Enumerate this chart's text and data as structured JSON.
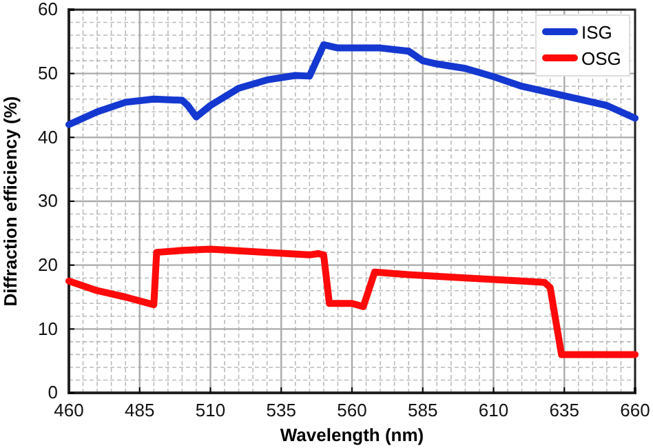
{
  "chart_data": {
    "type": "line",
    "xlabel": "Wavelength (nm)",
    "ylabel": "Diffraction efficiency (%)",
    "xlim": [
      460,
      660
    ],
    "xticks": [
      460,
      485,
      510,
      535,
      560,
      585,
      610,
      635,
      660
    ],
    "ylim": [
      0,
      60
    ],
    "yticks": [
      0,
      10,
      20,
      30,
      40,
      50,
      60
    ],
    "grid": true,
    "legend": "top right",
    "line_style": "solid",
    "marker": "none",
    "series": [
      {
        "name": "ISG",
        "color": "#1438d0",
        "x": [
          460,
          470,
          480,
          490,
          500,
          502,
          505,
          510,
          520,
          530,
          540,
          545,
          550,
          555,
          570,
          580,
          585,
          590,
          600,
          610,
          620,
          640,
          650,
          660
        ],
        "values": [
          42,
          44,
          45.5,
          46,
          45.8,
          45,
          43.2,
          45,
          47.7,
          49,
          49.7,
          49.6,
          54.5,
          54,
          54,
          53.5,
          52,
          51.5,
          50.8,
          49.5,
          48,
          46,
          45,
          43
        ]
      },
      {
        "name": "OSG",
        "color": "#ff0a0a",
        "x": [
          460,
          470,
          480,
          490,
          491,
          500,
          510,
          530,
          545,
          548,
          550,
          552,
          560,
          564,
          568,
          580,
          600,
          620,
          628,
          630,
          634,
          640,
          660
        ],
        "values": [
          17.5,
          16,
          15,
          13.8,
          22,
          22.3,
          22.5,
          22,
          21.6,
          21.8,
          21.6,
          14,
          14,
          13.5,
          18.9,
          18.5,
          18,
          17.5,
          17.3,
          16.5,
          6,
          6,
          6
        ]
      }
    ]
  }
}
